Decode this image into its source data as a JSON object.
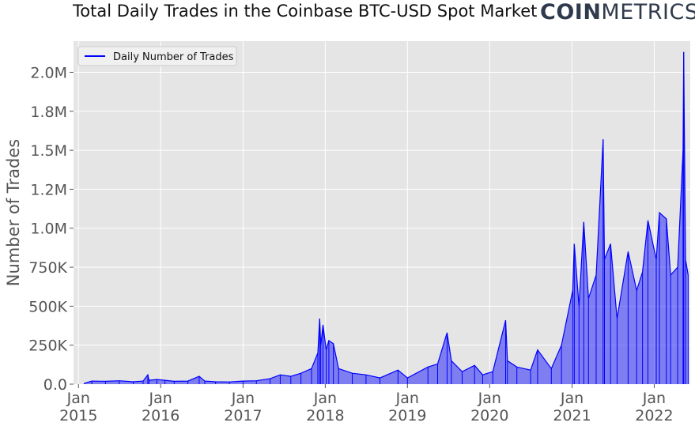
{
  "chart_data": {
    "type": "area",
    "title": "Total Daily Trades in the Coinbase BTC-USD Spot Market",
    "ylabel": "Number of Trades",
    "xlabel": "",
    "legend": {
      "entries": [
        "Daily Number of Trades"
      ],
      "placement": "top-left"
    },
    "grid": true,
    "ylim": [
      0,
      2200000
    ],
    "y_ticks": [
      {
        "value": 0,
        "label": "0.0"
      },
      {
        "value": 250000,
        "label": "250K"
      },
      {
        "value": 500000,
        "label": "500K"
      },
      {
        "value": 750000,
        "label": "750K"
      },
      {
        "value": 1000000,
        "label": "1.0M"
      },
      {
        "value": 1250000,
        "label": "1.2M"
      },
      {
        "value": 1500000,
        "label": "1.5M"
      },
      {
        "value": 1750000,
        "label": "1.8M"
      },
      {
        "value": 2000000,
        "label": "2.0M"
      }
    ],
    "xlim": [
      "2014-12-10",
      "2022-06-10"
    ],
    "x_ticks": [
      {
        "date": "2015-01-01",
        "label": [
          "Jan",
          "2015"
        ]
      },
      {
        "date": "2016-01-01",
        "label": [
          "Jan",
          "2016"
        ]
      },
      {
        "date": "2017-01-01",
        "label": [
          "Jan",
          "2017"
        ]
      },
      {
        "date": "2018-01-01",
        "label": [
          "Jan",
          "2018"
        ]
      },
      {
        "date": "2019-01-01",
        "label": [
          "Jan",
          "2019"
        ]
      },
      {
        "date": "2020-01-01",
        "label": [
          "Jan",
          "2020"
        ]
      },
      {
        "date": "2021-01-01",
        "label": [
          "Jan",
          "2021"
        ]
      },
      {
        "date": "2022-01-01",
        "label": [
          "Jan",
          "2022"
        ]
      }
    ],
    "series": [
      {
        "name": "Daily Number of Trades",
        "color": "#0000ff",
        "points": [
          [
            "2015-01-26",
            5000
          ],
          [
            "2015-03-01",
            20000
          ],
          [
            "2015-05-01",
            18000
          ],
          [
            "2015-07-01",
            22000
          ],
          [
            "2015-09-01",
            15000
          ],
          [
            "2015-10-15",
            20000
          ],
          [
            "2015-11-05",
            60000
          ],
          [
            "2015-11-10",
            25000
          ],
          [
            "2015-12-15",
            30000
          ],
          [
            "2016-01-20",
            25000
          ],
          [
            "2016-03-01",
            18000
          ],
          [
            "2016-05-01",
            20000
          ],
          [
            "2016-06-20",
            50000
          ],
          [
            "2016-07-15",
            20000
          ],
          [
            "2016-09-01",
            15000
          ],
          [
            "2016-11-01",
            14000
          ],
          [
            "2017-01-01",
            20000
          ],
          [
            "2017-03-01",
            22000
          ],
          [
            "2017-05-01",
            35000
          ],
          [
            "2017-06-15",
            60000
          ],
          [
            "2017-08-01",
            50000
          ],
          [
            "2017-09-15",
            70000
          ],
          [
            "2017-11-01",
            100000
          ],
          [
            "2017-11-29",
            200000
          ],
          [
            "2017-12-07",
            420000
          ],
          [
            "2017-12-12",
            250000
          ],
          [
            "2017-12-22",
            380000
          ],
          [
            "2018-01-05",
            220000
          ],
          [
            "2018-01-17",
            280000
          ],
          [
            "2018-02-06",
            260000
          ],
          [
            "2018-03-01",
            100000
          ],
          [
            "2018-05-01",
            70000
          ],
          [
            "2018-07-01",
            60000
          ],
          [
            "2018-09-01",
            40000
          ],
          [
            "2018-11-20",
            90000
          ],
          [
            "2019-01-01",
            40000
          ],
          [
            "2019-04-02",
            110000
          ],
          [
            "2019-05-15",
            130000
          ],
          [
            "2019-06-26",
            330000
          ],
          [
            "2019-07-15",
            150000
          ],
          [
            "2019-09-01",
            80000
          ],
          [
            "2019-10-26",
            120000
          ],
          [
            "2019-12-01",
            60000
          ],
          [
            "2020-01-15",
            80000
          ],
          [
            "2020-03-12",
            410000
          ],
          [
            "2020-03-20",
            150000
          ],
          [
            "2020-05-01",
            110000
          ],
          [
            "2020-07-01",
            90000
          ],
          [
            "2020-08-01",
            220000
          ],
          [
            "2020-10-01",
            100000
          ],
          [
            "2020-11-15",
            250000
          ],
          [
            "2021-01-04",
            600000
          ],
          [
            "2021-01-11",
            900000
          ],
          [
            "2021-02-01",
            500000
          ],
          [
            "2021-02-22",
            1040000
          ],
          [
            "2021-03-15",
            550000
          ],
          [
            "2021-04-18",
            700000
          ],
          [
            "2021-05-19",
            1570000
          ],
          [
            "2021-05-25",
            800000
          ],
          [
            "2021-06-21",
            900000
          ],
          [
            "2021-07-20",
            420000
          ],
          [
            "2021-09-07",
            850000
          ],
          [
            "2021-10-15",
            600000
          ],
          [
            "2021-11-10",
            720000
          ],
          [
            "2021-12-04",
            1050000
          ],
          [
            "2022-01-10",
            800000
          ],
          [
            "2022-01-24",
            1100000
          ],
          [
            "2022-02-24",
            1060000
          ],
          [
            "2022-03-15",
            700000
          ],
          [
            "2022-04-15",
            750000
          ],
          [
            "2022-05-09",
            1500000
          ],
          [
            "2022-05-12",
            2130000
          ],
          [
            "2022-05-20",
            800000
          ],
          [
            "2022-06-01",
            700000
          ]
        ]
      }
    ]
  },
  "logo": {
    "bold": "COIN",
    "light": "METRICS"
  }
}
